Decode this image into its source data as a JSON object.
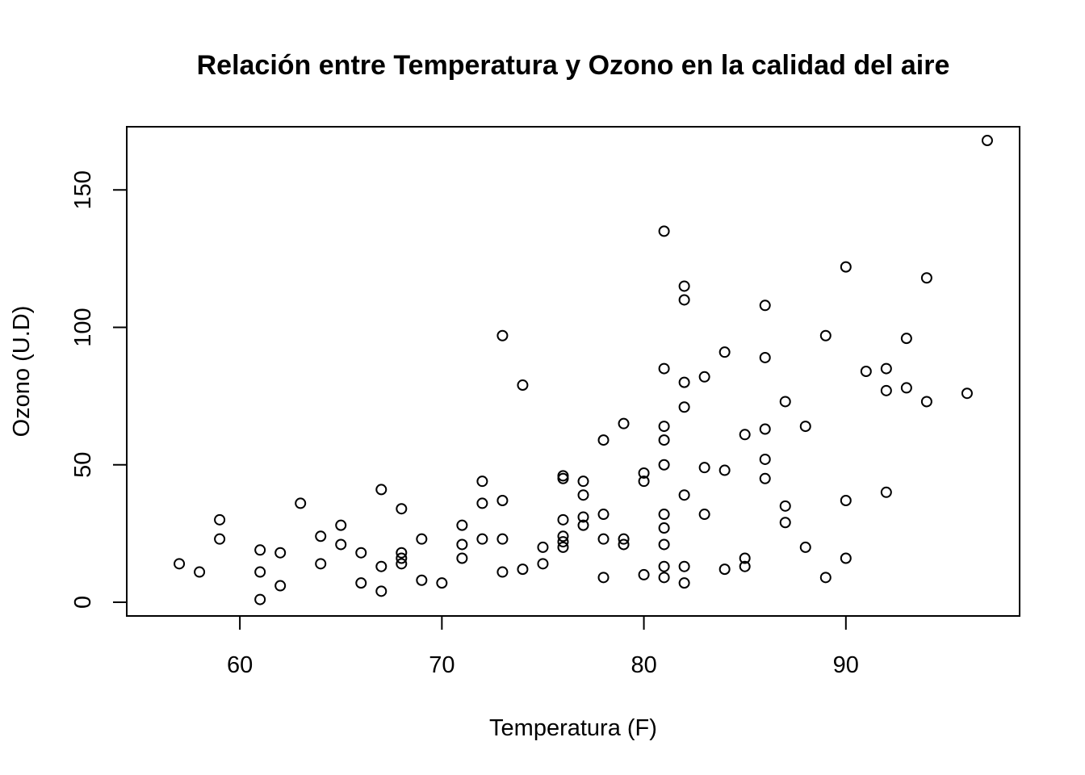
{
  "chart_data": {
    "type": "scatter",
    "title": "Relación entre Temperatura y Ozono en la calidad del aire",
    "xlabel": "Temperatura (F)",
    "ylabel": "Ozono (U.D)",
    "xlim": [
      54.4,
      98.6
    ],
    "ylim": [
      -5,
      173
    ],
    "xticks": [
      60,
      70,
      80,
      90
    ],
    "yticks": [
      0,
      50,
      100,
      150
    ],
    "grid": false,
    "marker": "open-circle",
    "x": [
      67,
      72,
      74,
      62,
      65,
      59,
      61,
      69,
      66,
      68,
      58,
      64,
      66,
      57,
      68,
      62,
      59,
      73,
      61,
      61,
      67,
      81,
      79,
      76,
      82,
      90,
      87,
      82,
      77,
      72,
      65,
      73,
      76,
      84,
      85,
      81,
      83,
      83,
      88,
      92,
      92,
      89,
      73,
      81,
      80,
      81,
      82,
      84,
      87,
      85,
      74,
      86,
      85,
      82,
      86,
      88,
      86,
      83,
      81,
      81,
      81,
      82,
      89,
      90,
      90,
      86,
      82,
      80,
      77,
      79,
      76,
      78,
      78,
      77,
      72,
      79,
      81,
      86,
      97,
      94,
      96,
      94,
      91,
      92,
      93,
      93,
      87,
      84,
      80,
      78,
      75,
      73,
      81,
      76,
      77,
      71,
      71,
      78,
      67,
      76,
      68,
      82,
      64,
      71,
      81,
      69,
      63,
      70,
      75,
      76,
      68
    ],
    "y": [
      41,
      36,
      12,
      18,
      28,
      23,
      19,
      8,
      7,
      16,
      11,
      14,
      18,
      14,
      34,
      6,
      30,
      11,
      1,
      11,
      4,
      32,
      23,
      45,
      115,
      37,
      29,
      71,
      39,
      23,
      21,
      37,
      20,
      12,
      13,
      135,
      49,
      32,
      64,
      40,
      77,
      97,
      97,
      85,
      10,
      27,
      7,
      48,
      35,
      61,
      79,
      63,
      16,
      80,
      108,
      20,
      52,
      82,
      50,
      64,
      59,
      39,
      9,
      16,
      122,
      89,
      110,
      44,
      28,
      65,
      22,
      59,
      23,
      31,
      44,
      21,
      9,
      45,
      168,
      73,
      76,
      118,
      84,
      85,
      96,
      78,
      73,
      91,
      47,
      32,
      20,
      23,
      21,
      24,
      44,
      21,
      28,
      9,
      13,
      46,
      18,
      13,
      24,
      16,
      13,
      23,
      36,
      7,
      14,
      30,
      14
    ]
  }
}
